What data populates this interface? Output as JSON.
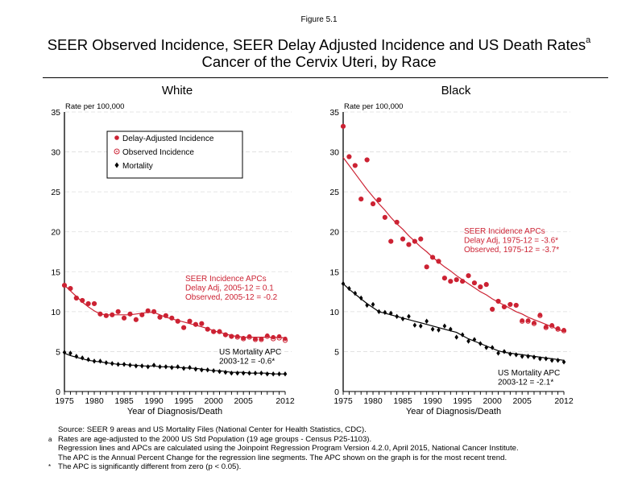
{
  "figure_label": "Figure 5.1",
  "title_line1": "SEER Observed Incidence, SEER Delay Adjusted Incidence and US Death Rates",
  "title_superscript": "a",
  "title_line2": "Cancer of the Cervix Uteri, by Race",
  "colors": {
    "incidence": "#cc2233",
    "mortality": "#000000",
    "grid": "#dddddd"
  },
  "legend": {
    "items": [
      {
        "label": "Delay-Adjusted Incidence",
        "icon": "filled-circle-icon"
      },
      {
        "label": "Observed Incidence",
        "icon": "hollow-circle-icon"
      },
      {
        "label": "Mortality",
        "icon": "diamond-icon"
      }
    ]
  },
  "footer": {
    "line1": "Source: SEER 9 areas and US Mortality Files (National Center for Health Statistics, CDC).",
    "line2_mark": "a",
    "line2": "Rates are age-adjusted to the 2000 US Std Population (19 age groups - Census P25-1103).",
    "line3": "Regression lines and APCs are calculated using the Joinpoint Regression Program Version 4.2.0, April 2015, National Cancer Institute.",
    "line4": "The APC is the Annual Percent Change for the regression line segments. The APC shown on the graph is for the most recent trend.",
    "line5_mark": "*",
    "line5": "The APC is significantly different from zero (p < 0.05)."
  },
  "chart_data": [
    {
      "type": "scatter",
      "title": "White",
      "ylabel": "Rate per 100,000",
      "xlabel": "Year of Diagnosis/Death",
      "ylim": [
        0,
        35
      ],
      "xlim": [
        1975,
        2012
      ],
      "yticks": [
        0,
        5,
        10,
        15,
        20,
        25,
        30,
        35
      ],
      "xtick_labels": [
        1975,
        1980,
        1985,
        1990,
        1995,
        2000,
        2005,
        2012
      ],
      "grid": true,
      "legend_position": "top-left",
      "x": [
        1975,
        1976,
        1977,
        1978,
        1979,
        1980,
        1981,
        1982,
        1983,
        1984,
        1985,
        1986,
        1987,
        1988,
        1989,
        1990,
        1991,
        1992,
        1993,
        1994,
        1995,
        1996,
        1997,
        1998,
        1999,
        2000,
        2001,
        2002,
        2003,
        2004,
        2005,
        2006,
        2007,
        2008,
        2009,
        2010,
        2011,
        2012
      ],
      "series": [
        {
          "name": "Delay-Adjusted Incidence",
          "values": [
            13.3,
            12.9,
            11.7,
            11.4,
            11.0,
            11.0,
            9.7,
            9.5,
            9.6,
            10.0,
            9.2,
            9.7,
            9.0,
            9.6,
            10.1,
            10.0,
            9.3,
            9.5,
            9.2,
            8.8,
            8.0,
            8.8,
            8.4,
            8.5,
            7.8,
            7.5,
            7.5,
            7.1,
            6.9,
            6.9,
            6.7,
            6.9,
            6.6,
            6.6,
            7.0,
            6.8,
            6.9,
            6.6
          ]
        },
        {
          "name": "Observed Incidence",
          "values": [
            13.3,
            12.9,
            11.7,
            11.4,
            11.0,
            11.0,
            9.7,
            9.5,
            9.6,
            10.0,
            9.2,
            9.7,
            9.0,
            9.6,
            10.1,
            10.0,
            9.3,
            9.5,
            9.2,
            8.8,
            8.0,
            8.8,
            8.4,
            8.5,
            7.8,
            7.5,
            7.5,
            7.1,
            6.9,
            6.8,
            6.6,
            6.8,
            6.5,
            6.5,
            6.9,
            6.6,
            6.7,
            6.4
          ]
        },
        {
          "name": "Mortality",
          "values": [
            4.9,
            4.8,
            4.4,
            4.2,
            4.0,
            3.8,
            3.8,
            3.6,
            3.5,
            3.4,
            3.4,
            3.3,
            3.2,
            3.2,
            3.1,
            3.3,
            3.1,
            3.1,
            3.0,
            3.1,
            2.9,
            3.0,
            2.8,
            2.7,
            2.7,
            2.6,
            2.5,
            2.4,
            2.3,
            2.3,
            2.3,
            2.3,
            2.3,
            2.3,
            2.2,
            2.2,
            2.2,
            2.2
          ]
        }
      ],
      "trend_incidence": [
        13.3,
        12.6,
        11.9,
        11.2,
        10.6,
        10.1,
        9.7,
        9.6,
        9.6,
        9.6,
        9.6,
        9.6,
        9.7,
        9.8,
        9.9,
        9.9,
        9.6,
        9.3,
        9.1,
        8.9,
        8.7,
        8.5,
        8.3,
        8.1,
        7.9,
        7.6,
        7.4,
        7.2,
        7.0,
        6.9,
        6.8,
        6.8,
        6.8,
        6.8,
        6.8,
        6.8,
        6.8,
        6.7
      ],
      "trend_mortality": [
        4.8,
        4.5,
        4.3,
        4.1,
        3.9,
        3.8,
        3.7,
        3.6,
        3.5,
        3.4,
        3.4,
        3.3,
        3.3,
        3.2,
        3.2,
        3.2,
        3.1,
        3.1,
        3.1,
        3.0,
        3.0,
        2.9,
        2.9,
        2.8,
        2.7,
        2.6,
        2.6,
        2.5,
        2.4,
        2.4,
        2.4,
        2.3,
        2.3,
        2.3,
        2.3,
        2.2,
        2.2,
        2.2
      ],
      "annotations": {
        "incidence_apc": [
          "SEER Incidence APCs",
          "Delay Adj, 2005-12 = 0.1",
          "Observed, 2005-12 = -0.2"
        ],
        "mortality_apc": [
          "US Mortality APC",
          "2003-12 = -0.6*"
        ]
      }
    },
    {
      "type": "scatter",
      "title": "Black",
      "ylabel": "Rate per 100,000",
      "xlabel": "Year of Diagnosis/Death",
      "ylim": [
        0,
        35
      ],
      "xlim": [
        1975,
        2012
      ],
      "yticks": [
        0,
        5,
        10,
        15,
        20,
        25,
        30,
        35
      ],
      "xtick_labels": [
        1975,
        1980,
        1985,
        1990,
        1995,
        2000,
        2005,
        2012
      ],
      "grid": true,
      "x": [
        1975,
        1976,
        1977,
        1978,
        1979,
        1980,
        1981,
        1982,
        1983,
        1984,
        1985,
        1986,
        1987,
        1988,
        1989,
        1990,
        1991,
        1992,
        1993,
        1994,
        1995,
        1996,
        1997,
        1998,
        1999,
        2000,
        2001,
        2002,
        2003,
        2004,
        2005,
        2006,
        2007,
        2008,
        2009,
        2010,
        2011,
        2012
      ],
      "series": [
        {
          "name": "Delay-Adjusted Incidence",
          "values": [
            33.2,
            29.4,
            28.3,
            24.1,
            29.0,
            23.5,
            24.0,
            21.8,
            18.8,
            21.2,
            19.1,
            18.4,
            18.8,
            19.1,
            15.6,
            16.8,
            16.3,
            14.2,
            13.8,
            14.0,
            13.8,
            14.5,
            13.6,
            13.1,
            13.4,
            10.3,
            11.3,
            10.6,
            10.9,
            10.8,
            8.9,
            8.9,
            8.6,
            9.6,
            8.1,
            8.3,
            7.9,
            7.7
          ]
        },
        {
          "name": "Observed Incidence",
          "values": [
            33.2,
            29.4,
            28.3,
            24.1,
            29.0,
            23.5,
            24.0,
            21.8,
            18.8,
            21.2,
            19.1,
            18.4,
            18.8,
            19.1,
            15.6,
            16.8,
            16.3,
            14.2,
            13.8,
            14.0,
            13.8,
            14.5,
            13.6,
            13.1,
            13.4,
            10.3,
            11.3,
            10.6,
            10.9,
            10.8,
            8.8,
            8.8,
            8.5,
            9.5,
            8.0,
            8.2,
            7.8,
            7.6
          ]
        },
        {
          "name": "Mortality",
          "values": [
            13.5,
            12.9,
            12.3,
            11.7,
            10.8,
            10.9,
            10.0,
            9.9,
            9.8,
            9.4,
            9.1,
            9.4,
            8.3,
            8.2,
            8.8,
            7.8,
            7.7,
            8.2,
            7.8,
            6.8,
            7.1,
            6.3,
            6.5,
            6.0,
            5.5,
            5.5,
            4.8,
            5.0,
            4.7,
            4.6,
            4.4,
            4.4,
            4.3,
            4.1,
            4.1,
            3.9,
            3.9,
            3.7
          ]
        }
      ],
      "trend_incidence": [
        29.3,
        28.3,
        27.3,
        26.3,
        25.3,
        24.4,
        23.5,
        22.7,
        21.8,
        21.0,
        20.3,
        19.5,
        18.8,
        18.1,
        17.5,
        16.8,
        16.2,
        15.6,
        15.1,
        14.5,
        14.0,
        13.5,
        13.0,
        12.5,
        12.1,
        11.6,
        11.2,
        10.8,
        10.4,
        10.0,
        9.7,
        9.3,
        9.0,
        8.7,
        8.4,
        8.1,
        7.8,
        7.5
      ],
      "trend_mortality": [
        13.5,
        12.8,
        12.2,
        11.6,
        11.0,
        10.5,
        10.0,
        9.8,
        9.6,
        9.4,
        9.2,
        9.0,
        8.8,
        8.6,
        8.4,
        8.2,
        8.0,
        7.8,
        7.6,
        7.4,
        7.0,
        6.6,
        6.3,
        6.0,
        5.7,
        5.4,
        5.1,
        4.9,
        4.8,
        4.7,
        4.6,
        4.5,
        4.4,
        4.3,
        4.2,
        4.1,
        4.0,
        3.9
      ],
      "annotations": {
        "incidence_apc": [
          "SEER Incidence APCs",
          "Delay Adj, 1975-12 = -3.6*",
          "Observed, 1975-12 = -3.7*"
        ],
        "mortality_apc": [
          "US Mortality APC",
          "2003-12 = -2.1*"
        ]
      }
    }
  ]
}
